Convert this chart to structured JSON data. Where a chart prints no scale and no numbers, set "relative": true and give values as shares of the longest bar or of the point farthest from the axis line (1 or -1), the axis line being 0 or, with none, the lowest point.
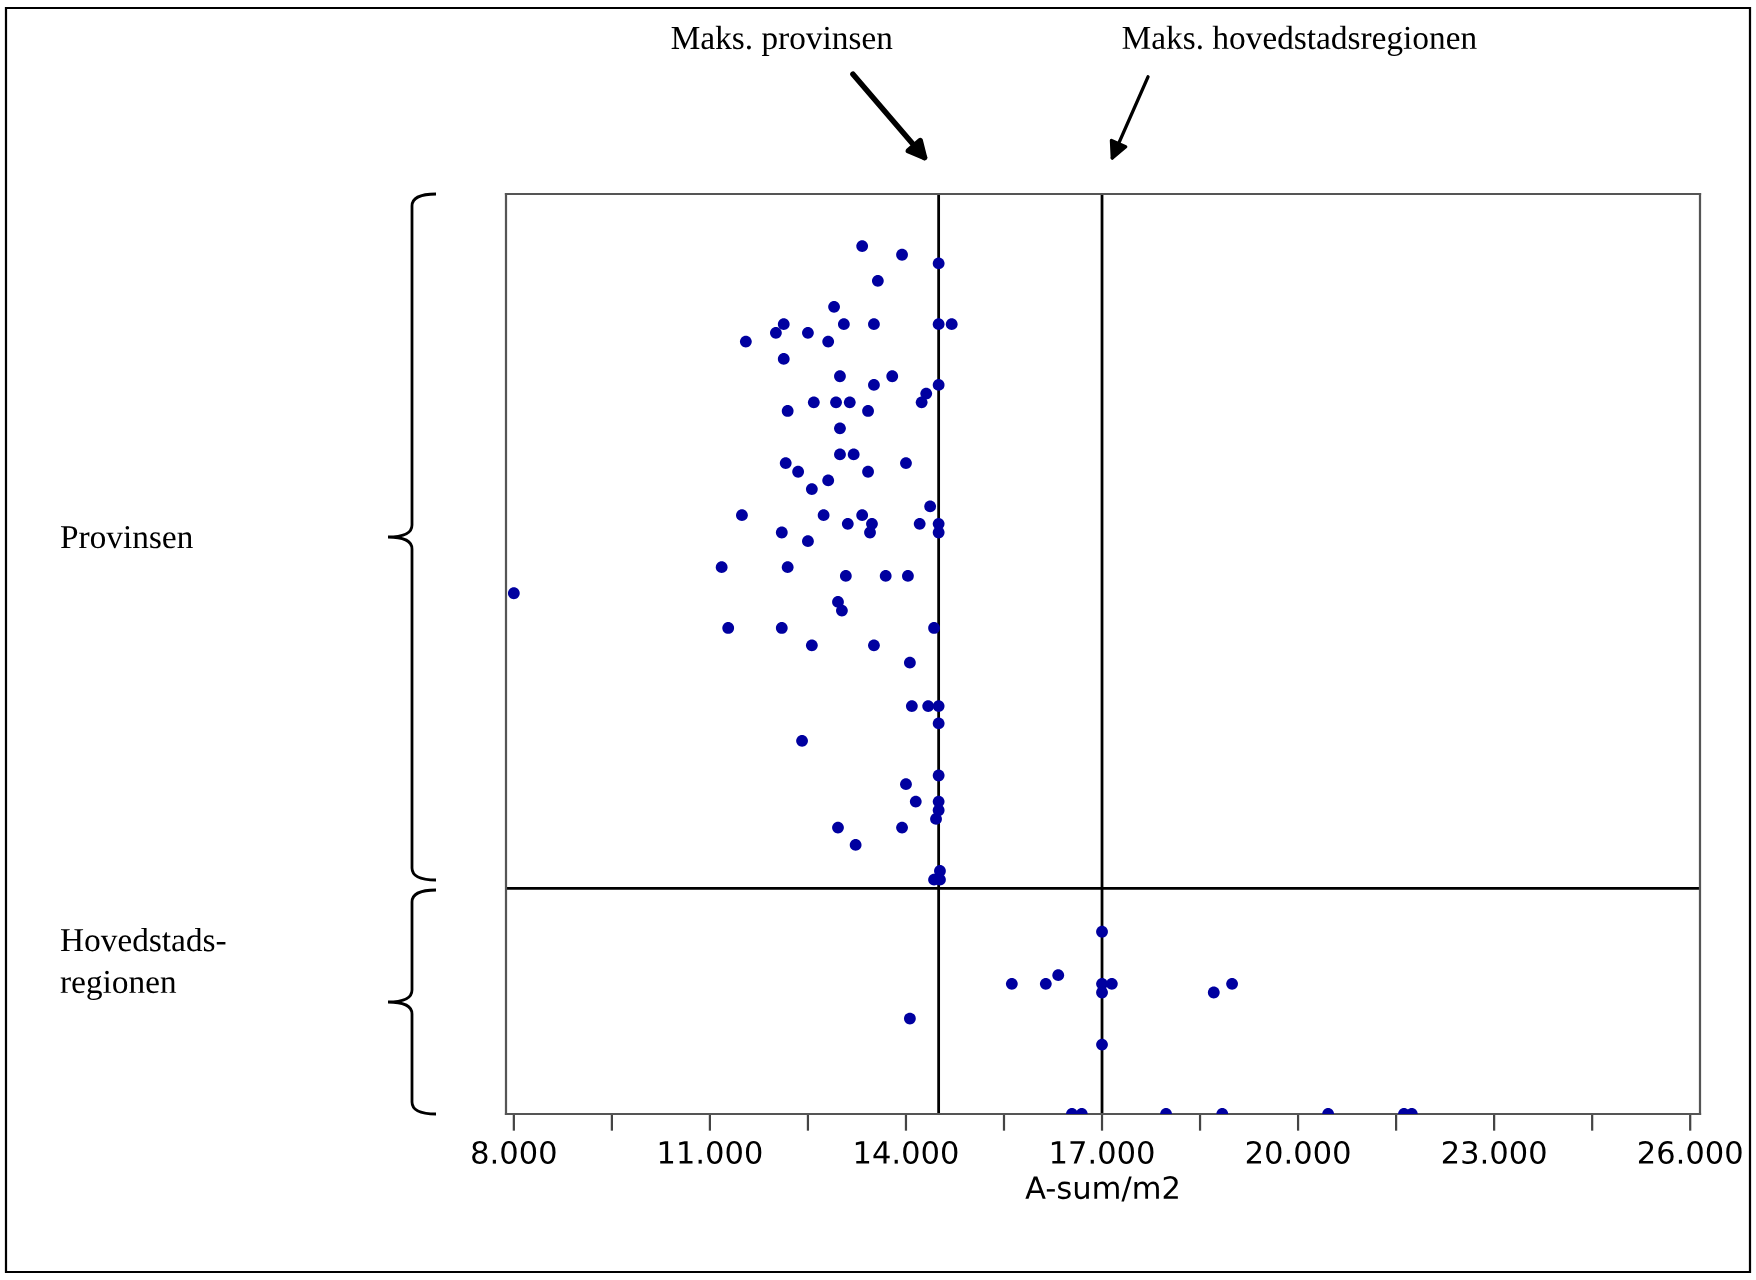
{
  "chart_data": {
    "type": "scatter",
    "relative": true,
    "xlabel": "A-sum/m2",
    "marker": "circle",
    "grid": false,
    "xlim": [
      7880,
      26150
    ],
    "xticks": [
      {
        "value": 8000,
        "label": "8.000"
      },
      {
        "value": 9500,
        "label": null
      },
      {
        "value": 11000,
        "label": "11.000"
      },
      {
        "value": 12500,
        "label": null
      },
      {
        "value": 14000,
        "label": "14.000"
      },
      {
        "value": 15500,
        "label": null
      },
      {
        "value": 17000,
        "label": "17.000"
      },
      {
        "value": 18500,
        "label": null
      },
      {
        "value": 20000,
        "label": "20.000"
      },
      {
        "value": 21500,
        "label": null
      },
      {
        "value": 23000,
        "label": "23.000"
      },
      {
        "value": 24500,
        "label": null
      },
      {
        "value": 26000,
        "label": "26.000"
      }
    ],
    "tick_labels": "x",
    "ref_lines": [
      {
        "axis": "x",
        "value": 14500
      },
      {
        "axis": "x",
        "value": 17000
      },
      {
        "axis": "y",
        "value": 0.26
      }
    ],
    "annotations": [
      "Provinsen",
      "Hovedstads-\nregionen",
      "Maks. provinsen",
      "Maks. hovedstadsregionen"
    ],
    "series": [
      {
        "color": "#0000a0",
        "x": [
          13330,
          13940,
          14500,
          13570,
          12900,
          12130,
          13050,
          13510,
          14500,
          14700,
          11550,
          12010,
          12500,
          12810,
          12130,
          12990,
          13510,
          13790,
          14500,
          14310,
          14240,
          12190,
          12590,
          12930,
          13140,
          13420,
          12990,
          12160,
          12350,
          12990,
          13200,
          13420,
          14000,
          12560,
          12810,
          11490,
          12740,
          13330,
          13480,
          14210,
          14370,
          14500,
          14500,
          13110,
          12100,
          12500,
          13450,
          11180,
          12190,
          13080,
          13690,
          14030,
          12960,
          13020,
          11280,
          12100,
          14430,
          12560,
          13510,
          14060,
          14090,
          14340,
          14500,
          14500,
          12410,
          14500,
          14000,
          14150,
          14500,
          14500,
          14460,
          12960,
          13940,
          13230,
          14520,
          14430,
          14520,
          8000,
          17000,
          15620,
          16140,
          16330,
          17000,
          17000,
          17150,
          18710,
          18990,
          14060,
          17000,
          16540,
          16690,
          17980,
          18840,
          20460,
          21620,
          21740
        ],
        "values": [
          1.0,
          0.99,
          0.98,
          0.96,
          0.93,
          0.91,
          0.91,
          0.91,
          0.91,
          0.91,
          0.89,
          0.9,
          0.9,
          0.89,
          0.87,
          0.85,
          0.84,
          0.85,
          0.84,
          0.83,
          0.82,
          0.81,
          0.82,
          0.82,
          0.82,
          0.81,
          0.79,
          0.75,
          0.74,
          0.76,
          0.76,
          0.74,
          0.75,
          0.72,
          0.73,
          0.69,
          0.69,
          0.69,
          0.68,
          0.68,
          0.7,
          0.68,
          0.67,
          0.68,
          0.67,
          0.66,
          0.67,
          0.63,
          0.63,
          0.62,
          0.62,
          0.62,
          0.59,
          0.58,
          0.56,
          0.56,
          0.56,
          0.54,
          0.54,
          0.52,
          0.47,
          0.47,
          0.47,
          0.45,
          0.43,
          0.39,
          0.38,
          0.36,
          0.36,
          0.35,
          0.34,
          0.33,
          0.33,
          0.31,
          0.28,
          0.27,
          0.27,
          0.6,
          0.21,
          0.15,
          0.15,
          0.16,
          0.15,
          0.14,
          0.15,
          0.14,
          0.15,
          0.11,
          0.08,
          0,
          0,
          0,
          0,
          0,
          0,
          0
        ]
      }
    ]
  }
}
